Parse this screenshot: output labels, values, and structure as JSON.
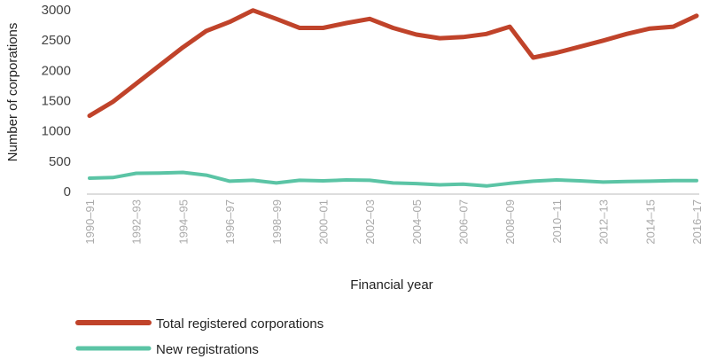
{
  "chart_data": {
    "type": "line",
    "xlabel": "Financial year",
    "ylabel": "Number of corporations",
    "ylim": [
      0,
      3000
    ],
    "yticks": [
      "0",
      "500",
      "1000",
      "1500",
      "2000",
      "2500",
      "3000"
    ],
    "grid": false,
    "legend_position": "bottom-left",
    "x_tick_labels": [
      "1990–91",
      "1992–93",
      "1994–95",
      "1996–97",
      "1998–99",
      "2000–01",
      "2002–03",
      "2004–05",
      "2006–07",
      "2008–09",
      "2010–11",
      "2012–13",
      "2014–15",
      "2016–17"
    ],
    "categories": [
      "1990–91",
      "1991–92",
      "1992–93",
      "1993–94",
      "1994–95",
      "1995–96",
      "1996–97",
      "1997–98",
      "1998–99",
      "1999–00",
      "2000–01",
      "2001–02",
      "2002–03",
      "2003–04",
      "2004–05",
      "2005–06",
      "2006–07",
      "2007–08",
      "2008–09",
      "2009–10",
      "2010–11",
      "2011–12",
      "2012–13",
      "2013–14",
      "2014–15",
      "2015–16",
      "2016–17"
    ],
    "series": [
      {
        "name": "Total registered corporations",
        "color": "#c0432a",
        "values": [
          1250,
          1480,
          1780,
          2080,
          2380,
          2650,
          2800,
          2990,
          2850,
          2700,
          2700,
          2780,
          2850,
          2700,
          2590,
          2530,
          2550,
          2600,
          2720,
          2210,
          2290,
          2390,
          2490,
          2600,
          2690,
          2720,
          2900
        ]
      },
      {
        "name": "New registrations",
        "color": "#5bc4a5",
        "values": [
          220,
          230,
          300,
          305,
          315,
          270,
          170,
          185,
          140,
          185,
          175,
          190,
          185,
          140,
          130,
          110,
          120,
          90,
          135,
          170,
          190,
          175,
          155,
          165,
          170,
          180,
          180
        ]
      }
    ]
  }
}
